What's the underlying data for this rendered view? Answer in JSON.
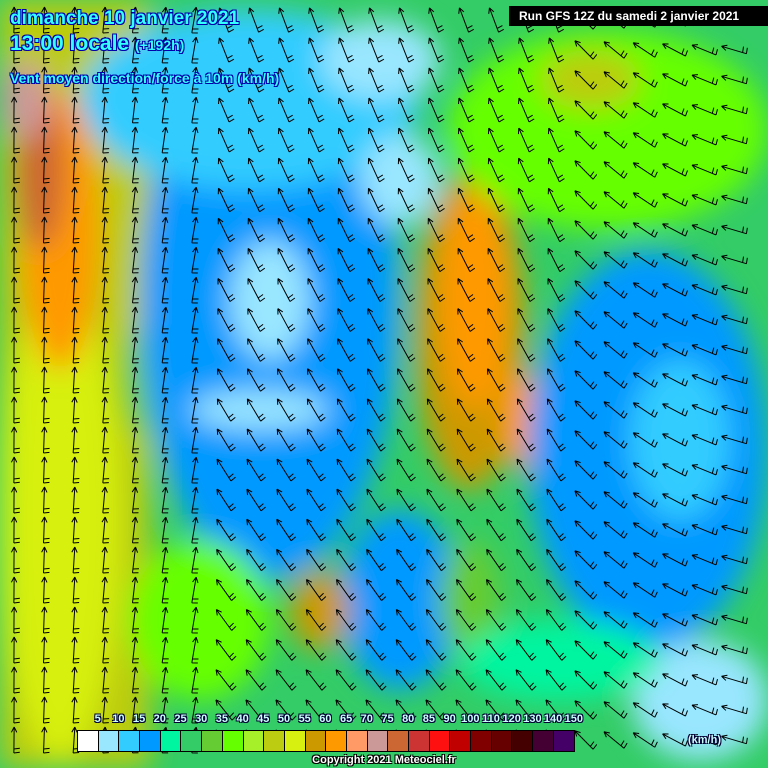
{
  "header": {
    "date": "dimanche 10 janvier 2021",
    "time": "13:00 locale",
    "lead": "(+192h)",
    "parameter": "Vent moyen direction/force à 10m (km/h)",
    "run": "Run GFS 12Z du samedi 2 janvier 2021"
  },
  "legend": {
    "labels": [
      "5",
      "10",
      "15",
      "20",
      "25",
      "30",
      "35",
      "40",
      "45",
      "50",
      "55",
      "60",
      "65",
      "70",
      "75",
      "80",
      "85",
      "90",
      "100",
      "110",
      "120",
      "130",
      "140",
      "150"
    ],
    "colors": [
      "#ffffff",
      "#99e6ff",
      "#33ccff",
      "#0099ff",
      "#00f5a0",
      "#33cc66",
      "#66cc33",
      "#66ff00",
      "#a6f02a",
      "#bccc10",
      "#d7f010",
      "#cc9900",
      "#ff9900",
      "#ff9966",
      "#cc9999",
      "#cc6633",
      "#cc3333",
      "#ff1010",
      "#c00000",
      "#800000",
      "#660000",
      "#440000",
      "#440033",
      "#440066"
    ],
    "unit": "(km/h)"
  },
  "footer": {
    "copyright": "Copyright 2021 Meteociel.fr"
  }
}
